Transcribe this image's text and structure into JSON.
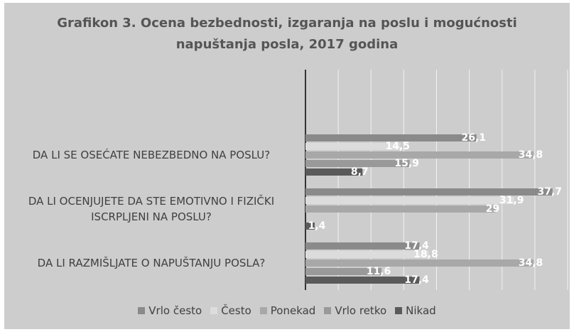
{
  "chart_data": {
    "type": "hbar",
    "title": "Grafikon 3. Ocena bezbednosti, izgaranja na poslu i mogućnosti napuštanja posla, 2017 godina",
    "categories": [
      "DA LI SE OSEĆATE NEBEZBEDNO NA POSLU?",
      "DA LI OCENJUJETE DA STE EMOTIVNO I FIZIČKI ISCRPLJENI NA POSLU?",
      "DA LI RAZMIŠLJATE O NAPUŠTANJU POSLA?"
    ],
    "series": [
      {
        "name": "Vrlo često",
        "color": "#8a8a8a",
        "values": [
          26.1,
          37.7,
          17.4
        ],
        "value_labels": [
          "26,1",
          "37,7",
          "17,4"
        ]
      },
      {
        "name": "Često",
        "color": "#dcdcdc",
        "values": [
          14.5,
          31.9,
          18.8
        ],
        "value_labels": [
          "14,5",
          "31,9",
          "18,8"
        ]
      },
      {
        "name": "Ponekad",
        "color": "#a8a8a8",
        "values": [
          34.8,
          29,
          34.8
        ],
        "value_labels": [
          "34,8",
          "29",
          "34,8"
        ]
      },
      {
        "name": "Vrlo retko",
        "color": "#999999",
        "values": [
          15.9,
          null,
          11.6
        ],
        "value_labels": [
          "15,9",
          null,
          "11,6"
        ]
      },
      {
        "name": "Nikad",
        "color": "#5a5a5a",
        "values": [
          8.7,
          1.4,
          17.4
        ],
        "value_labels": [
          "8,7",
          "1,4",
          "17,4"
        ]
      }
    ],
    "xlim": [
      0,
      40
    ],
    "xticks": [
      0,
      5,
      10,
      15,
      20,
      25,
      30,
      35,
      40
    ],
    "grid": true,
    "legend": "bottom"
  }
}
